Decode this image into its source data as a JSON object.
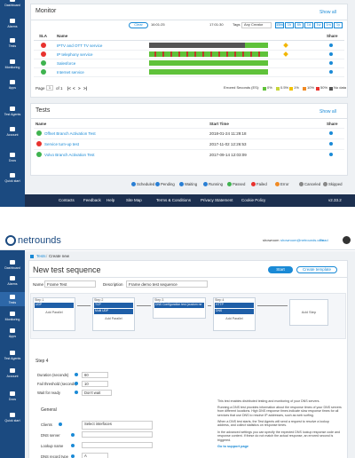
{
  "monitor_screen": {
    "sidebar": [
      "Dashboard",
      "Alarms",
      "Tests",
      "Monitoring",
      "Apps",
      "Test Agents",
      "Account",
      "Docs",
      "Quick start"
    ],
    "monitor": {
      "title": "Monitor",
      "show_all": "Show all",
      "clear": "Clear",
      "time_start": "16:01:25",
      "time_end": "17:01:30",
      "tags": "Tags",
      "creator": "Any Creator",
      "ranges": [
        "15m",
        "1h",
        "6h",
        "1d",
        "1w",
        "1m",
        "1y"
      ],
      "columns": [
        "SLA",
        "Name",
        "Share"
      ],
      "rows": [
        "IPTV and OTT TV service",
        "IP telephony service",
        "Salesforce",
        "Internet service"
      ],
      "page": "Page",
      "page_num": "1",
      "of": "of 1",
      "nav": [
        "|<",
        "<",
        ">",
        ">|"
      ],
      "legend_title": "Errored Seconds (ES):",
      "legend": [
        "0%",
        "0.5%",
        "1%",
        "10%",
        "50%",
        "No data"
      ]
    },
    "tests": {
      "title": "Tests",
      "show_all": "Show all",
      "columns": [
        "Name",
        "Start Time",
        "Share"
      ],
      "rows": [
        [
          "Offnet Branch Activation Test",
          "2018-01-24 11:29:18"
        ],
        [
          "Service turn-up test",
          "2017-11-02 12:26:53"
        ],
        [
          "Volvo Branch Activation Test",
          "2017-09-14 12:03:09"
        ]
      ]
    },
    "status_legend": [
      "Scheduled",
      "Pending",
      "Waiting",
      "Running",
      "Passed",
      "Failed",
      "Error",
      "Canceled",
      "Skipped"
    ],
    "footer": [
      "Contacts",
      "Feedback",
      "Help",
      "Site Map",
      "Terms & Conditions",
      "Privacy Statement",
      "Cookie Policy"
    ],
    "version": "v2.33.2"
  },
  "sequence_screen": {
    "logo": "netrounds",
    "user": "showroom",
    "email": "showroom@netrounds.com",
    "read": "Read",
    "sidebar": [
      "Dashboard",
      "Alarms",
      "Tests",
      "Monitoring",
      "Apps",
      "Test Agents",
      "Account",
      "Docs",
      "Quick start"
    ],
    "breadcrumb": [
      "Tests",
      "Create new"
    ],
    "title": "New test sequence",
    "start": "Start",
    "create_template": "Create template",
    "name_label": "Name",
    "name_value": "Frame Test",
    "description_label": "Description",
    "description_value": "Frame demo test sequence",
    "steps": [
      {
        "label": "Step 1",
        "tests": [
          "UDP"
        ],
        "add": "Add Parallel"
      },
      {
        "label": "Step 2",
        "tests": [
          "TCP",
          "Multi UDP"
        ],
        "add": "Add Parallel"
      },
      {
        "label": "Step 3",
        "tests": [
          "DNS Configuration test (custom ne"
        ]
      },
      {
        "label": "Step 4",
        "tests": [
          "HTTP",
          "DNS"
        ],
        "add": "Add Parallel"
      }
    ],
    "add_step": "Add Step",
    "section": "Step 4",
    "fields": [
      [
        "Duration (seconds)",
        "60"
      ],
      [
        "Fail threshold (seconds)",
        "10"
      ],
      [
        "Wait for ready",
        "Don't wait"
      ]
    ],
    "general": "General",
    "general_fields": [
      [
        "Clients",
        "Select interfaces"
      ],
      [
        "DNS server",
        ""
      ],
      [
        "Lookup name",
        ""
      ],
      [
        "DNS record type",
        "A"
      ]
    ],
    "help": [
      "This test enables distributed testing and monitoring of your DNS servers.",
      "Running a DNS test provides information about the response times of your DNS servers from different locations. High DNS response times indicate slow response times for all services that use DNS to resolve IP addresses, such as web surfing.",
      "When a DNS test starts, the Test Agents will send a request to resolve a lookup address, and collect statistics on response times.",
      "In the advanced settings you can specify the expected DNS lookup response code and response content. If these do not match the actual response, an errored second is triggered."
    ],
    "support_link": "Go to support page"
  }
}
